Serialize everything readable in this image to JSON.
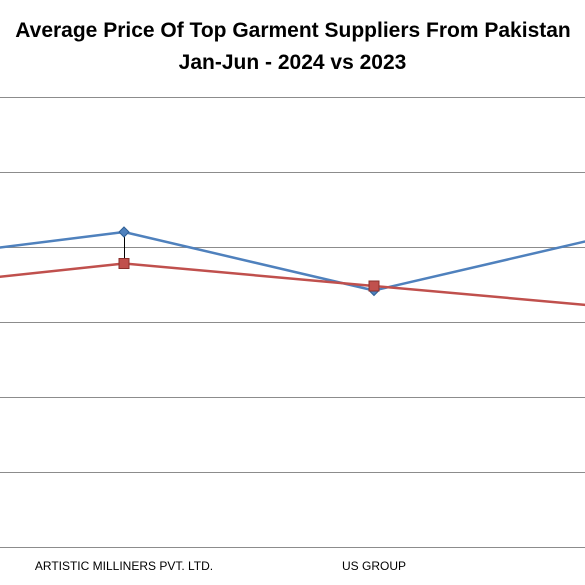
{
  "chart_data": {
    "type": "line",
    "title": "Average Price Of Top Garment Suppliers From Pakistan",
    "subtitle": "Jan-Jun - 2024 vs 2023",
    "xlabel": "",
    "ylabel": "",
    "categories": [
      "",
      "ARTISTIC MILLINERS PVT. LTD.",
      "US GROUP",
      ""
    ],
    "series": [
      {
        "values": [
          6.3,
          7.0,
          5.7,
          7.0
        ],
        "color": "#4f81bd",
        "marker": "diamond"
      },
      {
        "values": [
          5.7,
          6.3,
          5.8,
          5.3
        ],
        "color": "#c0504d",
        "marker": "square"
      }
    ],
    "ylim": [
      0,
      10
    ],
    "grid": true,
    "legend": "none"
  }
}
